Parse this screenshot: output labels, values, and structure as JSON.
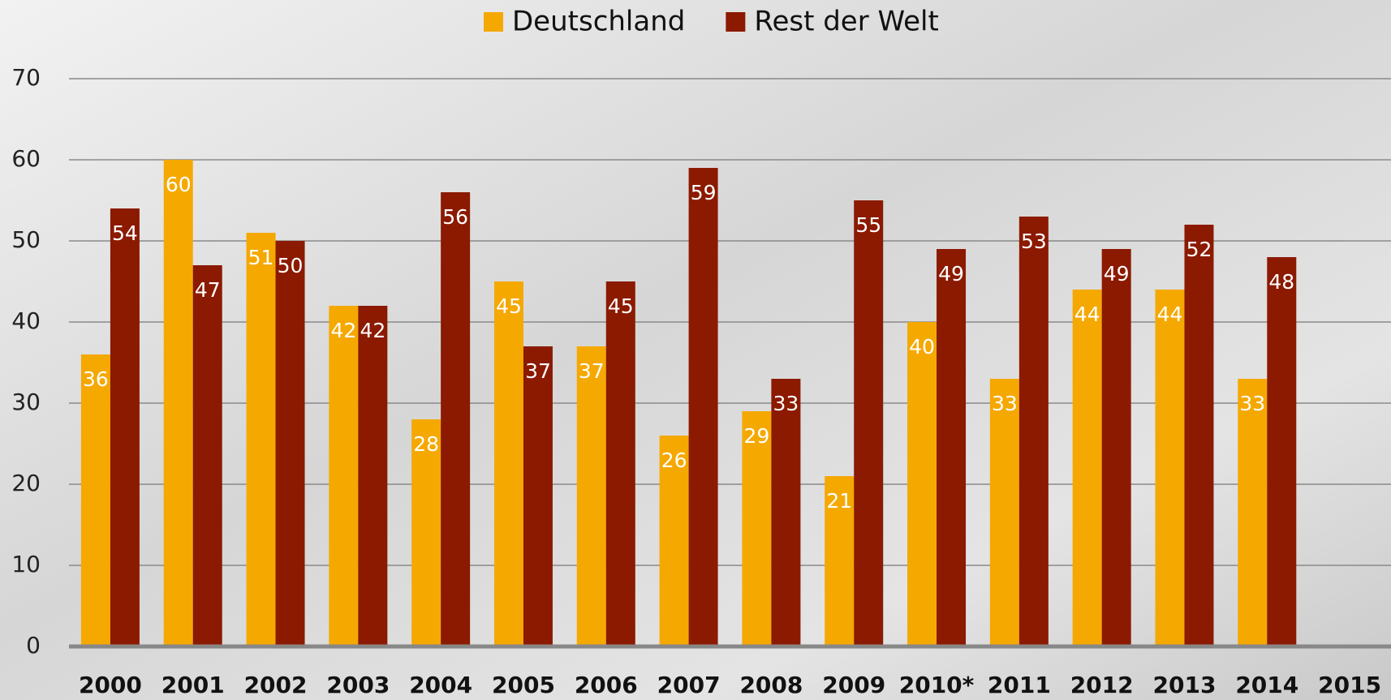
{
  "chart_data": {
    "type": "bar",
    "categories": [
      "2000",
      "2001",
      "2002",
      "2003",
      "2004",
      "2005",
      "2006",
      "2007",
      "2008",
      "2009",
      "2010*",
      "2011",
      "2012",
      "2013",
      "2014",
      "2015"
    ],
    "series": [
      {
        "name": "Deutschland",
        "color": "#f5a800",
        "values": [
          36,
          60,
          51,
          42,
          28,
          45,
          37,
          26,
          29,
          21,
          40,
          33,
          44,
          44,
          33,
          null
        ]
      },
      {
        "name": "Rest der Welt",
        "color": "#8b1a00",
        "values": [
          54,
          47,
          50,
          42,
          56,
          37,
          45,
          59,
          33,
          55,
          49,
          53,
          49,
          52,
          48,
          null
        ]
      }
    ],
    "ylim": [
      0,
      70
    ],
    "yticks": [
      0,
      10,
      20,
      30,
      40,
      50,
      60,
      70
    ],
    "grid": true,
    "legend": "top"
  }
}
